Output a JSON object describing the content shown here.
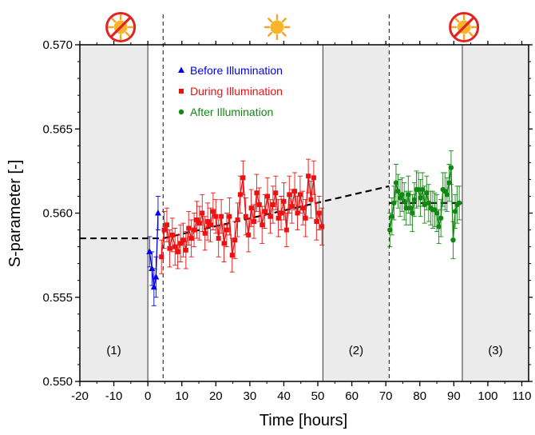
{
  "chart_data": {
    "type": "scatter",
    "title": "",
    "xlabel": "Time [hours]",
    "ylabel": "S-parameter [-]",
    "xlim": [
      -20,
      112
    ],
    "ylim": [
      0.55,
      0.57
    ],
    "x_ticks": [
      -20,
      -10,
      0,
      10,
      20,
      30,
      40,
      50,
      60,
      70,
      80,
      90,
      100,
      110
    ],
    "x_tick_labels": [
      "-20",
      "-10",
      "0",
      "10",
      "20",
      "30",
      "40",
      "50",
      "60",
      "70",
      "80",
      "90",
      "100",
      "110"
    ],
    "y_ticks": [
      0.55,
      0.555,
      0.56,
      0.565,
      0.57
    ],
    "y_tick_labels": [
      "0.550",
      "0.555",
      "0.560",
      "0.565",
      "0.570"
    ],
    "grid": false,
    "legend_position": "top-left",
    "shaded_regions": [
      {
        "label": "(1)",
        "x_from": -20,
        "x_to": 0
      },
      {
        "label": "(2)",
        "x_from": 51.5,
        "x_to": 71
      },
      {
        "label": "(3)",
        "x_from": 92.5,
        "x_to": 112
      }
    ],
    "illumination_markers": [
      {
        "icon": "no-sun-icon",
        "x": -8
      },
      {
        "icon": "sun-icon",
        "x": 38
      },
      {
        "icon": "no-sun-icon",
        "x": 93
      }
    ],
    "boundary_lines": [
      4.5,
      71
    ],
    "trend_lines": [
      {
        "x": [
          -20,
          4.5
        ],
        "y": [
          0.5585,
          0.5585
        ]
      },
      {
        "x": [
          4.5,
          71
        ],
        "y": [
          0.5585,
          0.5616
        ]
      },
      {
        "x": [
          71,
          92.5
        ],
        "y": [
          0.5606,
          0.5606
        ]
      }
    ],
    "series": [
      {
        "name": "Before Illumination",
        "color": "#0000ee",
        "marker": "triangle",
        "x": [
          0.5,
          1.2,
          1.8,
          2.4,
          3.0
        ],
        "y": [
          0.5577,
          0.5567,
          0.5556,
          0.5562,
          0.56
        ],
        "err": [
          0.0009,
          0.001,
          0.0011,
          0.0012,
          0.001
        ]
      },
      {
        "name": "During Illumination",
        "color": "#ee1111",
        "marker": "square",
        "x": [
          4.0,
          4.8,
          5.6,
          6.4,
          7.2,
          8.0,
          8.8,
          9.6,
          10.4,
          11.2,
          12.0,
          12.8,
          13.6,
          14.4,
          15.2,
          16.0,
          16.8,
          17.6,
          18.4,
          19.2,
          20.0,
          20.8,
          21.6,
          22.4,
          23.2,
          24.0,
          24.8,
          25.6,
          26.4,
          27.2,
          28.0,
          28.8,
          29.6,
          30.4,
          31.2,
          32.0,
          32.8,
          33.6,
          34.4,
          35.2,
          36.0,
          36.8,
          37.6,
          38.4,
          39.2,
          40.0,
          40.8,
          41.6,
          42.4,
          43.2,
          44.0,
          44.8,
          45.6,
          46.4,
          47.2,
          48.0,
          48.8,
          49.6,
          50.4,
          51.2
        ],
        "y": [
          0.5574,
          0.559,
          0.5593,
          0.5579,
          0.5587,
          0.558,
          0.5577,
          0.5582,
          0.5584,
          0.5578,
          0.5591,
          0.5585,
          0.559,
          0.5596,
          0.5594,
          0.56,
          0.5588,
          0.5595,
          0.5593,
          0.5601,
          0.5598,
          0.5585,
          0.5598,
          0.5582,
          0.559,
          0.5598,
          0.5575,
          0.5584,
          0.5596,
          0.5611,
          0.5621,
          0.5598,
          0.5587,
          0.5603,
          0.5595,
          0.5612,
          0.5605,
          0.5593,
          0.5601,
          0.561,
          0.5598,
          0.5605,
          0.5612,
          0.5597,
          0.56,
          0.5607,
          0.559,
          0.5611,
          0.5604,
          0.5613,
          0.56,
          0.5611,
          0.5603,
          0.5597,
          0.5622,
          0.5608,
          0.5621,
          0.5595,
          0.56,
          0.5592
        ],
        "err": [
          0.001,
          0.0011,
          0.001,
          0.0011,
          0.001,
          0.0011,
          0.001,
          0.0011,
          0.001,
          0.0011,
          0.001,
          0.0011,
          0.001,
          0.0011,
          0.001,
          0.0011,
          0.001,
          0.0011,
          0.001,
          0.0011,
          0.001,
          0.0011,
          0.001,
          0.0011,
          0.001,
          0.0011,
          0.001,
          0.0011,
          0.001,
          0.0011,
          0.001,
          0.0011,
          0.001,
          0.0011,
          0.001,
          0.0011,
          0.001,
          0.0011,
          0.001,
          0.0011,
          0.001,
          0.0011,
          0.001,
          0.0011,
          0.001,
          0.0011,
          0.001,
          0.0011,
          0.001,
          0.0011,
          0.001,
          0.0011,
          0.001,
          0.0011,
          0.001,
          0.0011,
          0.001,
          0.0011,
          0.001,
          0.0011
        ]
      },
      {
        "name": "After Illumination",
        "color": "#118811",
        "marker": "circle",
        "x": [
          71.2,
          71.8,
          72.4,
          73.0,
          73.6,
          74.2,
          74.8,
          75.4,
          76.0,
          76.6,
          77.2,
          77.8,
          78.4,
          79.0,
          79.6,
          80.2,
          80.8,
          81.4,
          82.0,
          82.6,
          83.2,
          83.8,
          84.4,
          85.0,
          85.6,
          86.2,
          86.8,
          87.4,
          88.0,
          88.6,
          89.2,
          89.8,
          90.4,
          91.0,
          91.6
        ],
        "y": [
          0.559,
          0.5598,
          0.5606,
          0.5618,
          0.5613,
          0.5609,
          0.5611,
          0.5607,
          0.5603,
          0.5611,
          0.5603,
          0.56,
          0.5608,
          0.5614,
          0.5614,
          0.5609,
          0.5614,
          0.5605,
          0.5612,
          0.5606,
          0.5603,
          0.5602,
          0.5602,
          0.56,
          0.5592,
          0.5597,
          0.5614,
          0.5613,
          0.5611,
          0.5618,
          0.5627,
          0.5584,
          0.5601,
          0.5605,
          0.5606
        ],
        "err": [
          0.001,
          0.0011,
          0.001,
          0.0011,
          0.001,
          0.0011,
          0.001,
          0.0011,
          0.001,
          0.0011,
          0.001,
          0.0011,
          0.001,
          0.0011,
          0.001,
          0.0011,
          0.001,
          0.0011,
          0.001,
          0.0011,
          0.001,
          0.0011,
          0.001,
          0.0011,
          0.001,
          0.0011,
          0.001,
          0.0011,
          0.001,
          0.0011,
          0.001,
          0.0011,
          0.001,
          0.0011,
          0.001
        ]
      }
    ]
  }
}
